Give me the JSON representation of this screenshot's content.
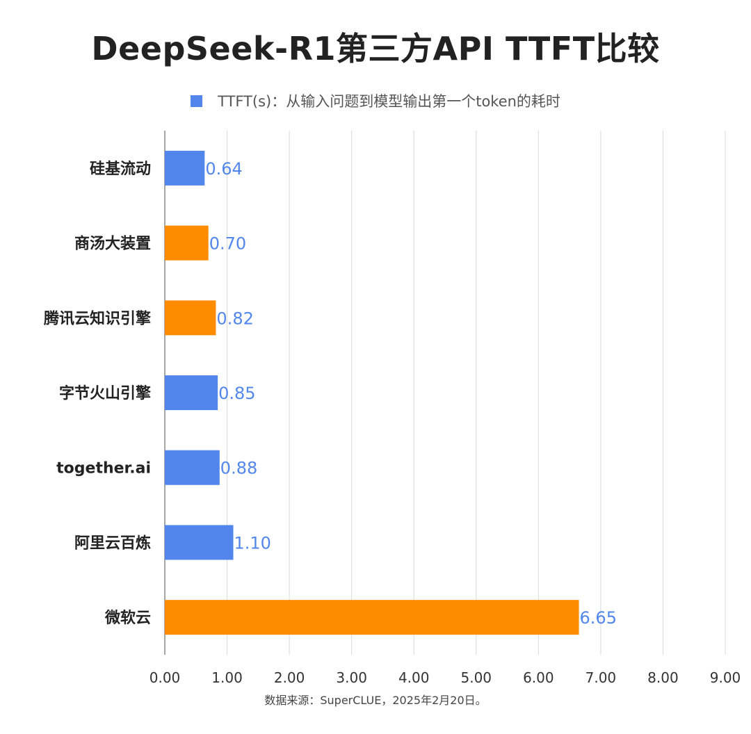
{
  "chart_data": {
    "type": "bar",
    "orientation": "horizontal",
    "title": "DeepSeek-R1第三方API TTFT比较",
    "legend": [
      {
        "label": "TTFT(s)：从输入问题到模型输出第一个token的耗时",
        "color": "#5286ec"
      }
    ],
    "legend_position": "top",
    "categories": [
      "硅基流动",
      "商汤大装置",
      "腾讯云知识引擎",
      "字节火山引擎",
      "together.ai",
      "阿里云百炼",
      "微软云"
    ],
    "values": [
      0.64,
      0.7,
      0.82,
      0.85,
      0.88,
      1.1,
      6.65
    ],
    "value_labels": [
      "0.64",
      "0.70",
      "0.82",
      "0.85",
      "0.88",
      "1.10",
      "6.65"
    ],
    "bar_colors": [
      "#5286ec",
      "#ff8c00",
      "#ff8c00",
      "#5286ec",
      "#5286ec",
      "#5286ec",
      "#ff8c00"
    ],
    "value_label_color": "#5286ec",
    "xlim": [
      0,
      9
    ],
    "xticks": [
      "0.00",
      "1.00",
      "2.00",
      "3.00",
      "4.00",
      "5.00",
      "6.00",
      "7.00",
      "8.00",
      "9.00"
    ],
    "grid": "vertical",
    "xlabel": "",
    "ylabel": ""
  },
  "source_note": "数据来源：SuperCLUE，2025年2月20日。"
}
